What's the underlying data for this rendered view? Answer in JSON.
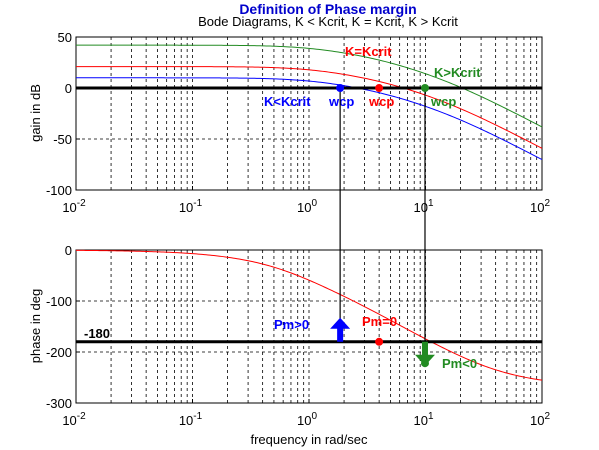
{
  "chart_data": [
    {
      "type": "line",
      "title": "Definition of Phase margin",
      "subtitle": "Bode Diagrams, K < Kcrit, K = Kcrit, K > Kcrit",
      "ylabel": "gain in dB",
      "xscale": "log",
      "xlim": [
        0.01,
        100
      ],
      "ylim": [
        -100,
        50
      ],
      "x_ticks": [
        0.01,
        0.1,
        1,
        10,
        100
      ],
      "x_tick_labels": [
        {
          "base": "10",
          "exp": "-2"
        },
        {
          "base": "10",
          "exp": "-1"
        },
        {
          "base": "10",
          "exp": "0"
        },
        {
          "base": "10",
          "exp": "1"
        },
        {
          "base": "10",
          "exp": "2"
        }
      ],
      "y_ticks": [
        50,
        0,
        -50,
        -100
      ],
      "y_tick_labels": [
        "50",
        "0",
        "-50",
        "-100"
      ],
      "grid": true,
      "reference_line_y": 0,
      "series": [
        {
          "name": "K>Kcrit",
          "color": "#228B22",
          "gain_db": 42
        },
        {
          "name": "K=Kcrit",
          "color": "#ff0000",
          "gain_db": 21
        },
        {
          "name": "K<Kcrit",
          "color": "#0000ff",
          "gain_db": 10
        }
      ],
      "crossover_points": [
        {
          "label": "wcp",
          "x": 1.85,
          "y": 0,
          "color": "#0000ff"
        },
        {
          "label": "wcp",
          "x": 4,
          "y": 0,
          "color": "#ff0000"
        },
        {
          "label": "wcp",
          "x": 9.9,
          "y": 0,
          "color": "#228B22"
        }
      ],
      "annotations": [
        {
          "text": "K>Kcrit",
          "color": "#228B22"
        },
        {
          "text": "K=Kcrit",
          "color": "#ff0000"
        },
        {
          "text": "K<Kcrit",
          "color": "#0000ff"
        }
      ]
    },
    {
      "type": "line",
      "ylabel": "phase in deg",
      "xlabel": "frequency in rad/sec",
      "xscale": "log",
      "xlim": [
        0.01,
        100
      ],
      "ylim": [
        -300,
        0
      ],
      "x_ticks": [
        0.01,
        0.1,
        1,
        10,
        100
      ],
      "x_tick_labels": [
        {
          "base": "10",
          "exp": "-2"
        },
        {
          "base": "10",
          "exp": "-1"
        },
        {
          "base": "10",
          "exp": "0"
        },
        {
          "base": "10",
          "exp": "1"
        },
        {
          "base": "10",
          "exp": "2"
        }
      ],
      "y_ticks": [
        0,
        -100,
        -200,
        -300
      ],
      "y_tick_labels": [
        "0",
        "-100",
        "-200",
        "-300"
      ],
      "grid": true,
      "reference_line_y": -180,
      "reference_label": "-180",
      "series": [
        {
          "color": "#ff0000",
          "phase_start_deg": 0,
          "phase_end_deg": -270
        }
      ],
      "crossover_points": [
        {
          "x": 4,
          "y": -180,
          "color": "#ff0000"
        },
        {
          "x": 9.9,
          "y": -222,
          "color": "#228B22"
        }
      ],
      "margin_arrows": [
        {
          "label": "Pm>0",
          "x": 1.85,
          "direction": "up",
          "color": "#0000ff"
        },
        {
          "label": "Pm=0",
          "x": 4,
          "direction": "none",
          "color": "#ff0000"
        },
        {
          "label": "Pm<0",
          "x": 9.9,
          "direction": "down",
          "color": "#228B22"
        }
      ]
    }
  ]
}
